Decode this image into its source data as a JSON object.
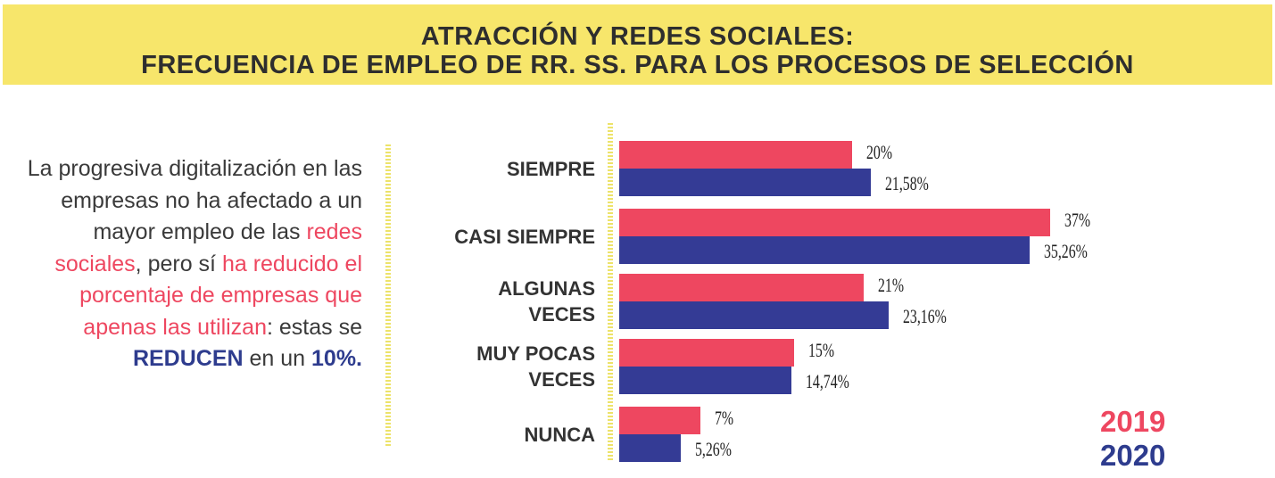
{
  "banner": {
    "title_line1": "ATRACCIÓN Y REDES SOCIALES:",
    "title_line2": "FRECUENCIA DE EMPLEO DE RR. SS. PARA LOS PROCESOS DE SELECCIÓN"
  },
  "intro": {
    "p1": "La progresiva digitalización en las empresas no ha afectado a un mayor empleo de las ",
    "p2": "redes sociales",
    "p3": ", pero sí ",
    "p4": "ha reducido el porcentaje de empresas que apenas las utilizan",
    "p5": ": estas se ",
    "p6": "REDUCEN",
    "p7": " en un ",
    "p8": "10%."
  },
  "colors": {
    "2019": "#ee4760",
    "2020": "#343b95",
    "banner": "#f7e66b"
  },
  "chart_data": {
    "type": "bar",
    "orientation": "horizontal",
    "categories": [
      "SIEMPRE",
      "CASI SIEMPRE",
      "ALGUNAS VECES",
      "MUY POCAS VECES",
      "NUNCA"
    ],
    "category_lines": [
      [
        "SIEMPRE"
      ],
      [
        "CASI SIEMPRE"
      ],
      [
        "ALGUNAS",
        "VECES"
      ],
      [
        "MUY POCAS",
        "VECES"
      ],
      [
        "NUNCA"
      ]
    ],
    "series": [
      {
        "name": "2019",
        "values": [
          20,
          37,
          21,
          15,
          7
        ],
        "labels": [
          "20%",
          "37%",
          "21%",
          "15%",
          "7%"
        ]
      },
      {
        "name": "2020",
        "values": [
          21.58,
          35.26,
          23.16,
          14.74,
          5.26
        ],
        "labels": [
          "21,58%",
          "35,26%",
          "23,16%",
          "14,74%",
          "5,26%"
        ]
      }
    ],
    "legend": [
      "2019",
      "2020"
    ],
    "legend_position": "bottom-right",
    "grid": false
  }
}
